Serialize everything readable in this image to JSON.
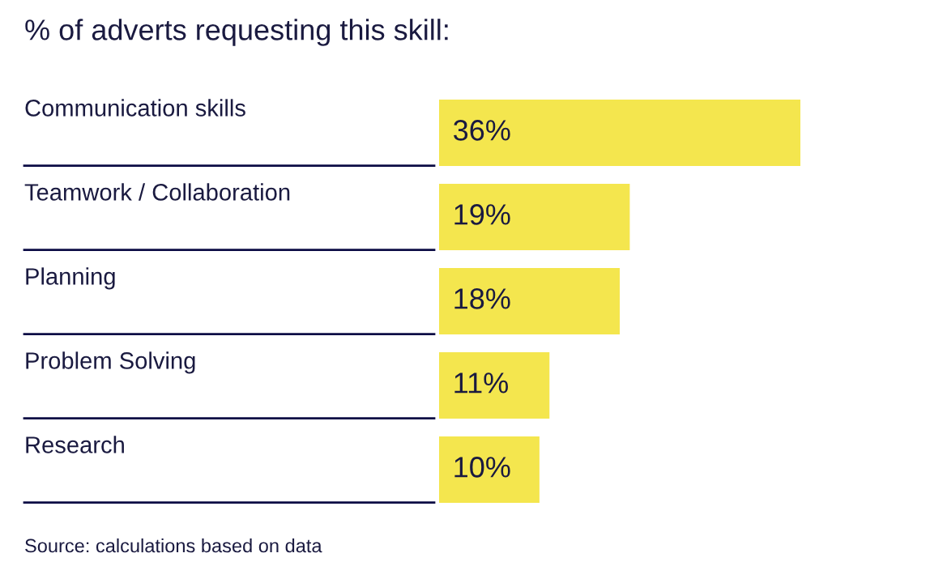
{
  "chart_data": {
    "type": "bar",
    "orientation": "horizontal",
    "title": "% of adverts requesting this skill:",
    "categories": [
      "Communication skills",
      "Teamwork / Collaboration",
      "Planning",
      "Problem Solving",
      "Research"
    ],
    "values": [
      36,
      19,
      18,
      11,
      10
    ],
    "value_labels": [
      "36%",
      "19%",
      "18%",
      "11%",
      "10%"
    ],
    "color": "#f4e64e",
    "annotations": [
      "Source: calculations based on data"
    ]
  }
}
